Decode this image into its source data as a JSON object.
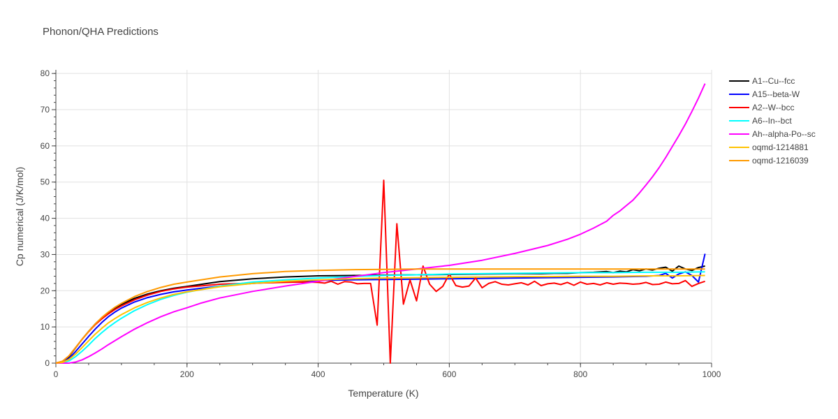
{
  "chart_data": {
    "type": "line",
    "title": "Phonon/QHA Predictions",
    "xlabel": "Temperature (K)",
    "ylabel": "Cp numerical (J/K/mol)",
    "xlim": [
      0,
      1000
    ],
    "ylim": [
      0,
      81
    ],
    "xticks": [
      0,
      200,
      400,
      600,
      800,
      1000
    ],
    "yticks": [
      0,
      10,
      20,
      30,
      40,
      50,
      60,
      70,
      80
    ],
    "grid": true,
    "legend_position": "top-right",
    "series": [
      {
        "name": "A1--Cu--fcc",
        "color": "#000000",
        "x": [
          0,
          10,
          20,
          30,
          40,
          50,
          60,
          70,
          80,
          90,
          100,
          120,
          140,
          160,
          180,
          200,
          250,
          300,
          350,
          400,
          450,
          500,
          550,
          600,
          650,
          700,
          720,
          740,
          760,
          780,
          800,
          820,
          840,
          850,
          860,
          870,
          880,
          890,
          900,
          910,
          920,
          930,
          940,
          950,
          960,
          970,
          980,
          990
        ],
        "y": [
          0,
          0.4,
          1.8,
          4.2,
          6.6,
          8.8,
          10.8,
          12.5,
          14.0,
          15.2,
          16.2,
          17.9,
          19.1,
          20.0,
          20.7,
          21.2,
          22.5,
          23.3,
          23.8,
          24.1,
          24.2,
          24.3,
          24.4,
          24.5,
          24.6,
          24.7,
          24.7,
          24.7,
          24.8,
          24.8,
          25.0,
          25.1,
          25.3,
          25.0,
          25.4,
          25.2,
          25.8,
          25.5,
          26.0,
          25.7,
          26.2,
          26.5,
          25.4,
          26.8,
          26.0,
          25.6,
          26.4,
          26.8
        ]
      },
      {
        "name": "A15--beta-W",
        "color": "#0000ff",
        "x": [
          0,
          10,
          20,
          30,
          40,
          50,
          60,
          70,
          80,
          90,
          100,
          120,
          140,
          160,
          180,
          200,
          250,
          300,
          350,
          400,
          450,
          500,
          550,
          600,
          650,
          700,
          750,
          800,
          850,
          900,
          920,
          930,
          940,
          950,
          960,
          970,
          980,
          990
        ],
        "y": [
          0,
          0.3,
          1.3,
          3.2,
          5.3,
          7.4,
          9.4,
          11.2,
          12.8,
          14.1,
          15.2,
          16.9,
          18.1,
          19.0,
          19.7,
          20.2,
          21.3,
          22.0,
          22.5,
          22.8,
          23.0,
          23.1,
          23.2,
          23.3,
          23.4,
          23.5,
          23.6,
          23.7,
          23.8,
          24.0,
          24.2,
          24.8,
          23.5,
          24.6,
          25.2,
          24.2,
          22.4,
          30.2
        ]
      },
      {
        "name": "A2--W--bcc",
        "color": "#ff0000",
        "x": [
          0,
          10,
          20,
          30,
          40,
          50,
          60,
          70,
          80,
          90,
          100,
          120,
          140,
          160,
          180,
          200,
          250,
          300,
          350,
          380,
          400,
          410,
          420,
          430,
          440,
          450,
          460,
          470,
          480,
          490,
          500,
          510,
          520,
          530,
          540,
          550,
          560,
          570,
          580,
          590,
          600,
          610,
          620,
          630,
          640,
          650,
          660,
          670,
          680,
          690,
          700,
          710,
          720,
          730,
          740,
          750,
          760,
          770,
          780,
          790,
          800,
          810,
          820,
          830,
          840,
          850,
          860,
          870,
          880,
          890,
          900,
          910,
          920,
          930,
          940,
          950,
          960,
          970,
          980,
          990
        ],
        "y": [
          0,
          0.5,
          2.0,
          4.3,
          6.6,
          8.7,
          10.6,
          12.2,
          13.6,
          14.8,
          15.8,
          17.5,
          18.8,
          19.8,
          20.5,
          21.0,
          21.8,
          22.1,
          22.3,
          22.4,
          22.3,
          22.1,
          22.6,
          21.8,
          22.5,
          22.4,
          21.9,
          22.0,
          22.0,
          10.5,
          50.5,
          0,
          38.5,
          16.3,
          23.0,
          17.2,
          26.8,
          21.8,
          19.8,
          21.2,
          24.6,
          21.4,
          21.0,
          21.3,
          23.5,
          20.8,
          22.0,
          22.5,
          21.8,
          21.6,
          21.9,
          22.2,
          21.6,
          22.6,
          21.4,
          21.9,
          22.1,
          21.7,
          22.3,
          21.5,
          22.4,
          21.8,
          22.0,
          21.6,
          22.2,
          21.8,
          22.1,
          22.0,
          21.8,
          21.9,
          22.3,
          21.7,
          21.8,
          22.4,
          21.9,
          22.0,
          22.8,
          21.2,
          22.0,
          22.6
        ]
      },
      {
        "name": "A6--In--bct",
        "color": "#00ffff",
        "x": [
          0,
          10,
          20,
          30,
          40,
          50,
          60,
          70,
          80,
          90,
          100,
          120,
          140,
          160,
          180,
          200,
          250,
          300,
          350,
          400,
          450,
          500,
          550,
          600,
          650,
          700,
          750,
          800,
          850,
          900,
          950,
          990
        ],
        "y": [
          0,
          0.1,
          0.6,
          1.8,
          3.3,
          5.0,
          6.8,
          8.4,
          9.9,
          11.2,
          12.4,
          14.5,
          16.2,
          17.6,
          18.7,
          19.6,
          21.3,
          22.4,
          23.0,
          23.5,
          23.9,
          24.2,
          24.4,
          24.6,
          24.7,
          24.8,
          24.9,
          25.0,
          25.0,
          25.1,
          25.1,
          25.2
        ]
      },
      {
        "name": "Ah--alpha-Po--sc",
        "color": "#ff00ff",
        "x": [
          0,
          10,
          20,
          30,
          40,
          50,
          60,
          70,
          80,
          90,
          100,
          120,
          140,
          160,
          180,
          200,
          220,
          250,
          300,
          350,
          400,
          450,
          500,
          550,
          600,
          650,
          700,
          750,
          780,
          800,
          820,
          840,
          850,
          860,
          870,
          880,
          890,
          900,
          910,
          920,
          930,
          940,
          950,
          960,
          970,
          980,
          990
        ],
        "y": [
          0,
          0,
          0,
          0.3,
          0.9,
          1.8,
          2.8,
          3.9,
          5.1,
          6.2,
          7.3,
          9.4,
          11.2,
          12.8,
          14.2,
          15.3,
          16.5,
          18.0,
          19.8,
          21.3,
          22.6,
          23.8,
          25.0,
          26.0,
          27.0,
          28.4,
          30.3,
          32.5,
          34.2,
          35.6,
          37.3,
          39.2,
          40.8,
          42.0,
          43.5,
          45.0,
          47.0,
          49.2,
          51.5,
          54.0,
          56.8,
          59.8,
          62.8,
          66.0,
          69.5,
          73.2,
          77.2
        ]
      },
      {
        "name": "oqmd-1214881",
        "color": "#ffc200",
        "x": [
          0,
          10,
          20,
          30,
          40,
          50,
          60,
          70,
          80,
          90,
          100,
          120,
          140,
          160,
          180,
          200,
          250,
          300,
          350,
          400,
          450,
          500,
          550,
          600,
          650,
          700,
          750,
          800,
          850,
          900,
          950,
          990
        ],
        "y": [
          0,
          0.2,
          1.0,
          2.5,
          4.3,
          6.2,
          8.0,
          9.6,
          11.1,
          12.3,
          13.4,
          15.3,
          16.8,
          18.0,
          19.0,
          19.7,
          21.1,
          22.0,
          22.6,
          23.0,
          23.3,
          23.5,
          23.6,
          23.7,
          23.8,
          23.9,
          23.9,
          24.0,
          24.0,
          24.1,
          24.1,
          24.2
        ]
      },
      {
        "name": "oqmd-1216039",
        "color": "#ff9a00",
        "x": [
          0,
          10,
          20,
          30,
          40,
          50,
          60,
          70,
          80,
          90,
          100,
          120,
          140,
          160,
          180,
          200,
          250,
          300,
          350,
          400,
          450,
          500,
          550,
          600,
          650,
          700,
          750,
          800,
          850,
          900,
          950,
          990
        ],
        "y": [
          0,
          0.5,
          2.0,
          4.3,
          6.6,
          8.8,
          10.8,
          12.6,
          14.1,
          15.4,
          16.5,
          18.4,
          19.8,
          20.9,
          21.8,
          22.4,
          23.8,
          24.7,
          25.3,
          25.6,
          25.8,
          25.9,
          26.0,
          26.0,
          26.0,
          26.0,
          26.0,
          26.0,
          26.0,
          26.0,
          26.0,
          26.0
        ]
      }
    ]
  }
}
